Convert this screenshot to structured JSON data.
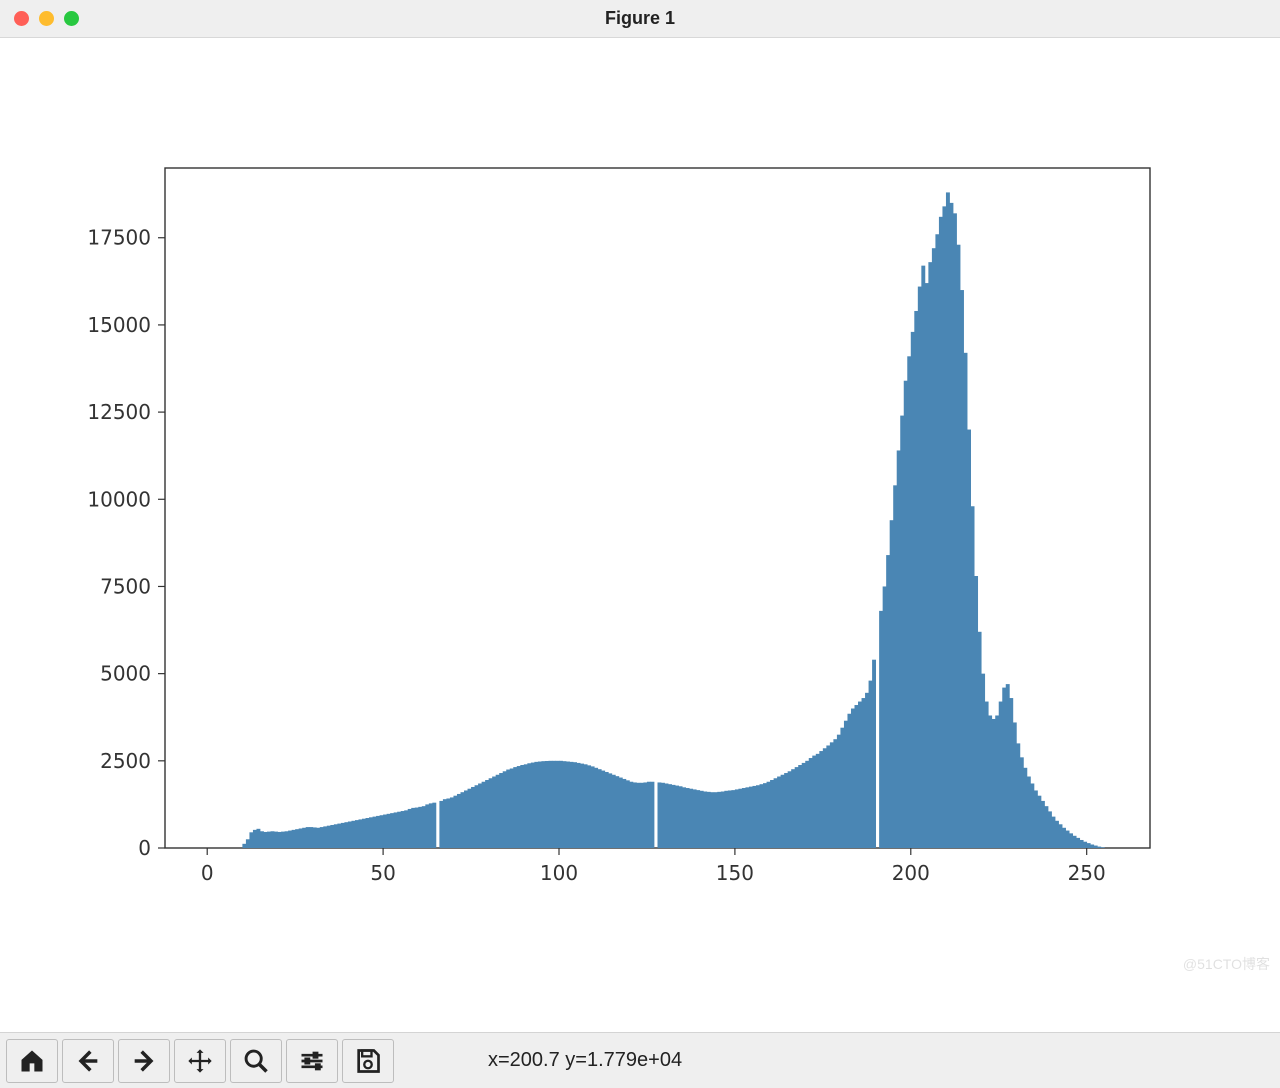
{
  "window": {
    "title": "Figure 1",
    "traffic_colors": {
      "close": "#ff5f57",
      "min": "#febc2e",
      "max": "#28c840"
    }
  },
  "toolbar": {
    "coord_label": "x=200.7 y=1.779e+04"
  },
  "watermark": "@51CTO博客",
  "chart": {
    "type": "histogram",
    "x_ticks": [
      0,
      50,
      100,
      150,
      200,
      250
    ],
    "y_ticks": [
      0,
      2500,
      5000,
      7500,
      10000,
      12500,
      15000,
      17500
    ],
    "xlim": [
      -12,
      268
    ],
    "ylim": [
      0,
      19500
    ],
    "bar_color": "#4a86b4",
    "axis_color": "#333333",
    "tick_fontsize": 20,
    "background_color": "#ffffff",
    "bar_width": 1.0,
    "gaps_at_x": [
      65,
      127,
      190
    ],
    "values": [
      [
        0,
        0
      ],
      [
        1,
        0
      ],
      [
        2,
        0
      ],
      [
        3,
        0
      ],
      [
        4,
        0
      ],
      [
        5,
        0
      ],
      [
        6,
        0
      ],
      [
        7,
        0
      ],
      [
        8,
        0
      ],
      [
        9,
        0
      ],
      [
        10,
        120
      ],
      [
        11,
        250
      ],
      [
        12,
        450
      ],
      [
        13,
        520
      ],
      [
        14,
        550
      ],
      [
        15,
        480
      ],
      [
        16,
        460
      ],
      [
        17,
        470
      ],
      [
        18,
        480
      ],
      [
        19,
        470
      ],
      [
        20,
        460
      ],
      [
        21,
        470
      ],
      [
        22,
        480
      ],
      [
        23,
        500
      ],
      [
        24,
        520
      ],
      [
        25,
        540
      ],
      [
        26,
        560
      ],
      [
        27,
        580
      ],
      [
        28,
        600
      ],
      [
        29,
        600
      ],
      [
        30,
        590
      ],
      [
        31,
        580
      ],
      [
        32,
        600
      ],
      [
        33,
        620
      ],
      [
        34,
        640
      ],
      [
        35,
        660
      ],
      [
        36,
        680
      ],
      [
        37,
        700
      ],
      [
        38,
        720
      ],
      [
        39,
        740
      ],
      [
        40,
        760
      ],
      [
        41,
        780
      ],
      [
        42,
        800
      ],
      [
        43,
        820
      ],
      [
        44,
        840
      ],
      [
        45,
        860
      ],
      [
        46,
        880
      ],
      [
        47,
        900
      ],
      [
        48,
        920
      ],
      [
        49,
        940
      ],
      [
        50,
        960
      ],
      [
        51,
        980
      ],
      [
        52,
        1000
      ],
      [
        53,
        1020
      ],
      [
        54,
        1040
      ],
      [
        55,
        1060
      ],
      [
        56,
        1080
      ],
      [
        57,
        1120
      ],
      [
        58,
        1150
      ],
      [
        59,
        1160
      ],
      [
        60,
        1180
      ],
      [
        61,
        1200
      ],
      [
        62,
        1250
      ],
      [
        63,
        1280
      ],
      [
        64,
        1300
      ],
      [
        65,
        1330
      ],
      [
        66,
        1350
      ],
      [
        67,
        1400
      ],
      [
        68,
        1420
      ],
      [
        69,
        1450
      ],
      [
        70,
        1500
      ],
      [
        71,
        1550
      ],
      [
        72,
        1600
      ],
      [
        73,
        1650
      ],
      [
        74,
        1700
      ],
      [
        75,
        1750
      ],
      [
        76,
        1800
      ],
      [
        77,
        1850
      ],
      [
        78,
        1900
      ],
      [
        79,
        1950
      ],
      [
        80,
        2000
      ],
      [
        81,
        2050
      ],
      [
        82,
        2100
      ],
      [
        83,
        2150
      ],
      [
        84,
        2200
      ],
      [
        85,
        2250
      ],
      [
        86,
        2280
      ],
      [
        87,
        2320
      ],
      [
        88,
        2350
      ],
      [
        89,
        2380
      ],
      [
        90,
        2400
      ],
      [
        91,
        2430
      ],
      [
        92,
        2450
      ],
      [
        93,
        2470
      ],
      [
        94,
        2480
      ],
      [
        95,
        2490
      ],
      [
        96,
        2495
      ],
      [
        97,
        2500
      ],
      [
        98,
        2500
      ],
      [
        99,
        2500
      ],
      [
        100,
        2500
      ],
      [
        101,
        2490
      ],
      [
        102,
        2480
      ],
      [
        103,
        2470
      ],
      [
        104,
        2460
      ],
      [
        105,
        2440
      ],
      [
        106,
        2420
      ],
      [
        107,
        2400
      ],
      [
        108,
        2370
      ],
      [
        109,
        2340
      ],
      [
        110,
        2300
      ],
      [
        111,
        2260
      ],
      [
        112,
        2220
      ],
      [
        113,
        2180
      ],
      [
        114,
        2140
      ],
      [
        115,
        2100
      ],
      [
        116,
        2060
      ],
      [
        117,
        2020
      ],
      [
        118,
        1980
      ],
      [
        119,
        1940
      ],
      [
        120,
        1900
      ],
      [
        121,
        1880
      ],
      [
        122,
        1870
      ],
      [
        123,
        1870
      ],
      [
        124,
        1880
      ],
      [
        125,
        1900
      ],
      [
        126,
        1900
      ],
      [
        127,
        1890
      ],
      [
        128,
        1880
      ],
      [
        129,
        1870
      ],
      [
        130,
        1850
      ],
      [
        131,
        1830
      ],
      [
        132,
        1810
      ],
      [
        133,
        1790
      ],
      [
        134,
        1770
      ],
      [
        135,
        1740
      ],
      [
        136,
        1720
      ],
      [
        137,
        1700
      ],
      [
        138,
        1680
      ],
      [
        139,
        1660
      ],
      [
        140,
        1640
      ],
      [
        141,
        1620
      ],
      [
        142,
        1610
      ],
      [
        143,
        1600
      ],
      [
        144,
        1600
      ],
      [
        145,
        1610
      ],
      [
        146,
        1620
      ],
      [
        147,
        1640
      ],
      [
        148,
        1650
      ],
      [
        149,
        1660
      ],
      [
        150,
        1680
      ],
      [
        151,
        1700
      ],
      [
        152,
        1720
      ],
      [
        153,
        1740
      ],
      [
        154,
        1760
      ],
      [
        155,
        1780
      ],
      [
        156,
        1800
      ],
      [
        157,
        1830
      ],
      [
        158,
        1860
      ],
      [
        159,
        1900
      ],
      [
        160,
        1950
      ],
      [
        161,
        2000
      ],
      [
        162,
        2050
      ],
      [
        163,
        2100
      ],
      [
        164,
        2150
      ],
      [
        165,
        2200
      ],
      [
        166,
        2260
      ],
      [
        167,
        2320
      ],
      [
        168,
        2380
      ],
      [
        169,
        2440
      ],
      [
        170,
        2500
      ],
      [
        171,
        2580
      ],
      [
        172,
        2650
      ],
      [
        173,
        2700
      ],
      [
        174,
        2780
      ],
      [
        175,
        2860
      ],
      [
        176,
        2940
      ],
      [
        177,
        3030
      ],
      [
        178,
        3120
      ],
      [
        179,
        3250
      ],
      [
        180,
        3450
      ],
      [
        181,
        3650
      ],
      [
        182,
        3850
      ],
      [
        183,
        4000
      ],
      [
        184,
        4100
      ],
      [
        185,
        4200
      ],
      [
        186,
        4300
      ],
      [
        187,
        4450
      ],
      [
        188,
        4800
      ],
      [
        189,
        5400
      ],
      [
        190,
        6200
      ],
      [
        191,
        6800
      ],
      [
        192,
        7500
      ],
      [
        193,
        8400
      ],
      [
        194,
        9400
      ],
      [
        195,
        10400
      ],
      [
        196,
        11400
      ],
      [
        197,
        12400
      ],
      [
        198,
        13400
      ],
      [
        199,
        14100
      ],
      [
        200,
        14800
      ],
      [
        201,
        15400
      ],
      [
        202,
        16100
      ],
      [
        203,
        16700
      ],
      [
        204,
        16200
      ],
      [
        205,
        16800
      ],
      [
        206,
        17200
      ],
      [
        207,
        17600
      ],
      [
        208,
        18100
      ],
      [
        209,
        18400
      ],
      [
        210,
        18800
      ],
      [
        211,
        18500
      ],
      [
        212,
        18200
      ],
      [
        213,
        17300
      ],
      [
        214,
        16000
      ],
      [
        215,
        14200
      ],
      [
        216,
        12000
      ],
      [
        217,
        9800
      ],
      [
        218,
        7800
      ],
      [
        219,
        6200
      ],
      [
        220,
        5000
      ],
      [
        221,
        4200
      ],
      [
        222,
        3800
      ],
      [
        223,
        3700
      ],
      [
        224,
        3800
      ],
      [
        225,
        4200
      ],
      [
        226,
        4600
      ],
      [
        227,
        4700
      ],
      [
        228,
        4300
      ],
      [
        229,
        3600
      ],
      [
        230,
        3000
      ],
      [
        231,
        2600
      ],
      [
        232,
        2300
      ],
      [
        233,
        2050
      ],
      [
        234,
        1850
      ],
      [
        235,
        1650
      ],
      [
        236,
        1500
      ],
      [
        237,
        1350
      ],
      [
        238,
        1200
      ],
      [
        239,
        1050
      ],
      [
        240,
        900
      ],
      [
        241,
        780
      ],
      [
        242,
        680
      ],
      [
        243,
        580
      ],
      [
        244,
        500
      ],
      [
        245,
        420
      ],
      [
        246,
        350
      ],
      [
        247,
        290
      ],
      [
        248,
        230
      ],
      [
        249,
        180
      ],
      [
        250,
        140
      ],
      [
        251,
        100
      ],
      [
        252,
        70
      ],
      [
        253,
        40
      ],
      [
        254,
        20
      ],
      [
        255,
        0
      ]
    ]
  }
}
